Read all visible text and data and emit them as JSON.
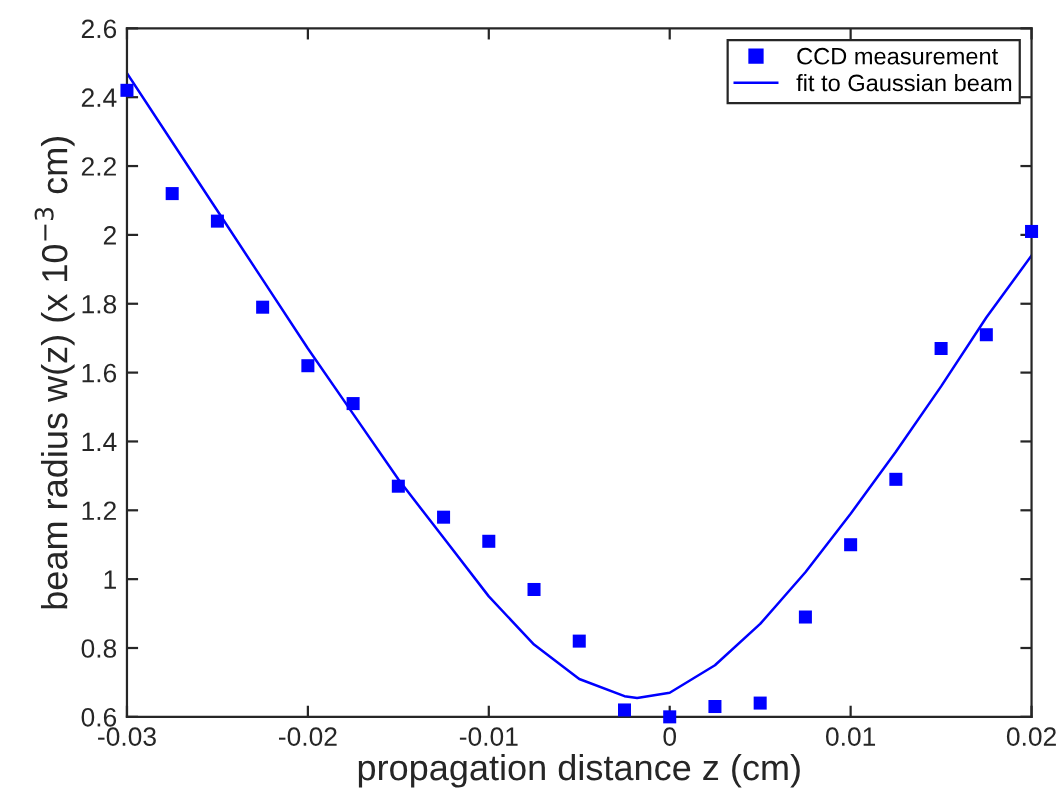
{
  "chart_data": {
    "type": "scatter",
    "xlabel": "propagation distance z (cm)",
    "ylabel": "beam radius w(z) (x 10$^{−3}$ cm)",
    "xlim": [
      -0.03,
      0.02
    ],
    "xticks": [
      -0.03,
      -0.02,
      -0.01,
      0,
      0.01,
      0.02
    ],
    "ylim": [
      0.6,
      2.6
    ],
    "yticks": [
      0.6,
      0.8,
      1,
      1.2,
      1.4,
      1.6,
      1.8,
      2,
      2.2,
      2.4,
      2.6
    ],
    "grid": false,
    "legend": "top right",
    "series": [
      {
        "name": "CCD measurement",
        "marker": "square",
        "color": "#0000ff",
        "x": [
          -0.03,
          -0.0275,
          -0.025,
          -0.0225,
          -0.02,
          -0.0175,
          -0.015,
          -0.0125,
          -0.01,
          -0.0075,
          -0.005,
          -0.0025,
          0,
          0.0025,
          0.005,
          0.0075,
          0.01,
          0.0125,
          0.015,
          0.0175,
          0.02
        ],
        "values": [
          2.42,
          2.12,
          2.04,
          1.79,
          1.62,
          1.51,
          1.27,
          1.18,
          1.11,
          0.97,
          0.82,
          0.62,
          0.6,
          0.63,
          0.64,
          0.89,
          1.1,
          1.29,
          1.67,
          1.71,
          2.01
        ]
      },
      {
        "name": "fit to Gaussian beam",
        "type": "line",
        "marker": "none",
        "line_style": "solid",
        "color": "#0000ff",
        "x": [
          -0.03,
          -0.0275,
          -0.025,
          -0.0225,
          -0.02,
          -0.0175,
          -0.015,
          -0.0125,
          -0.01,
          -0.0075,
          -0.005,
          -0.0025,
          -0.0018,
          0,
          0.0025,
          0.005,
          0.0075,
          0.01,
          0.0125,
          0.015,
          0.0175,
          0.02
        ],
        "values": [
          2.47,
          2.27,
          2.07,
          1.87,
          1.67,
          1.48,
          1.29,
          1.12,
          0.95,
          0.81,
          0.71,
          0.66,
          0.655,
          0.67,
          0.75,
          0.87,
          1.02,
          1.19,
          1.37,
          1.56,
          1.76,
          1.94
        ]
      }
    ]
  }
}
